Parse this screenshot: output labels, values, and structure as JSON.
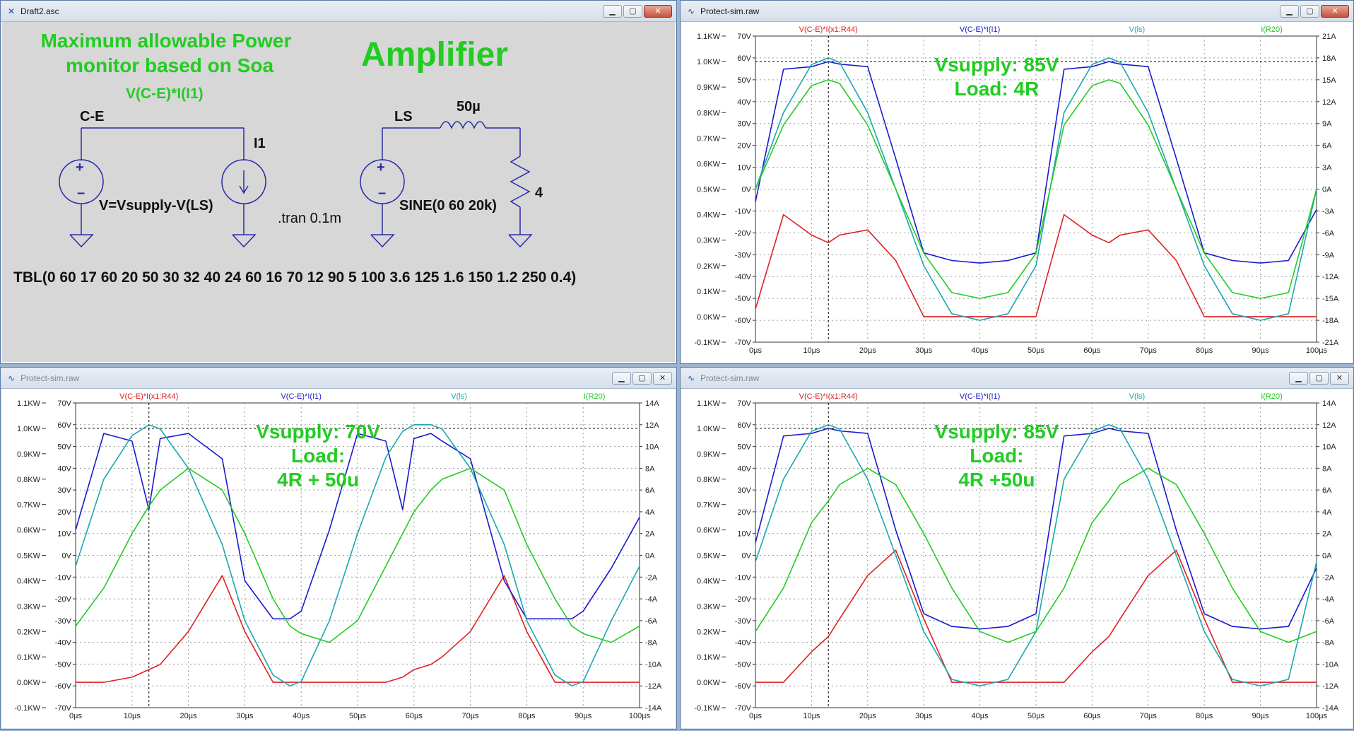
{
  "schematic_window": {
    "title": "Draft2.asc",
    "labels": {
      "heading_line1": "Maximum allowable Power",
      "heading_line2": "monitor based on Soa",
      "expr": "V(C-E)*I(I1)",
      "amplifier": "Amplifier",
      "ce": "C-E",
      "i1": "I1",
      "ls": "LS",
      "inductor": "50µ",
      "source_expr": "V=Vsupply-V(LS)",
      "tran": ".tran 0.1m",
      "sine": "SINE(0 60 20k)",
      "resistor": "4",
      "tbl": "TBL(0 60 17 60 20 50 30 32 40 24 60 16 70 12 90 5 100 3.6 125 1.6 150 1.2 250 0.4)"
    },
    "colors": {
      "text": "#22cc22",
      "wire": "#2a2aa8",
      "component": "#2a2aa8",
      "background": "#d7d7d7"
    }
  },
  "plot_windows": [
    {
      "title": "Protect-sim.raw",
      "active": true,
      "annotation": [
        "Vsupply: 85V",
        "Load: 4R"
      ],
      "legend": [
        {
          "label": "V(C-E)*I(x1:R44)",
          "color": "#e02020"
        },
        {
          "label": "V(C-E)*I(I1)",
          "color": "#1a1ad0"
        },
        {
          "label": "V(ls)",
          "color": "#1aa8b0"
        },
        {
          "label": "I(R20)",
          "color": "#22cc22"
        }
      ],
      "left_ticks_kw": [
        "1.1KW",
        "1.0KW",
        "0.9KW",
        "0.8KW",
        "0.7KW",
        "0.6KW",
        "0.5KW",
        "0.4KW",
        "0.3KW",
        "0.2KW",
        "0.1KW",
        "0.0KW",
        "-0.1KW"
      ],
      "volt_ticks": [
        "70V",
        "60V",
        "50V",
        "40V",
        "30V",
        "20V",
        "10V",
        "0V",
        "-10V",
        "-20V",
        "-30V",
        "-40V",
        "-50V",
        "-60V",
        "-70V"
      ],
      "right_ticks": [
        "21A",
        "18A",
        "15A",
        "12A",
        "9A",
        "6A",
        "3A",
        "0A",
        "-3A",
        "-6A",
        "-9A",
        "-12A",
        "-15A",
        "-18A",
        "-21A"
      ],
      "x_ticks": [
        "0µs",
        "10µs",
        "20µs",
        "30µs",
        "40µs",
        "50µs",
        "60µs",
        "70µs",
        "80µs",
        "90µs",
        "100µs"
      ]
    },
    {
      "title": "Protect-sim.raw",
      "active": false,
      "annotation": [
        "Vsupply: 70V",
        "Load:",
        "4R + 50u"
      ],
      "legend": [
        {
          "label": "V(C-E)*I(x1:R44)",
          "color": "#e02020"
        },
        {
          "label": "V(C-E)*I(I1)",
          "color": "#1a1ad0"
        },
        {
          "label": "V(ls)",
          "color": "#1aa8b0"
        },
        {
          "label": "I(R20)",
          "color": "#22cc22"
        }
      ],
      "left_ticks_kw": [
        "1.1KW",
        "1.0KW",
        "0.9KW",
        "0.8KW",
        "0.7KW",
        "0.6KW",
        "0.5KW",
        "0.4KW",
        "0.3KW",
        "0.2KW",
        "0.1KW",
        "0.0KW",
        "-0.1KW"
      ],
      "volt_ticks": [
        "70V",
        "60V",
        "50V",
        "40V",
        "30V",
        "20V",
        "10V",
        "0V",
        "-10V",
        "-20V",
        "-30V",
        "-40V",
        "-50V",
        "-60V",
        "-70V"
      ],
      "right_ticks": [
        "14A",
        "12A",
        "10A",
        "8A",
        "6A",
        "4A",
        "2A",
        "0A",
        "-2A",
        "-4A",
        "-6A",
        "-8A",
        "-10A",
        "-12A",
        "-14A"
      ],
      "x_ticks": [
        "0µs",
        "10µs",
        "20µs",
        "30µs",
        "40µs",
        "50µs",
        "60µs",
        "70µs",
        "80µs",
        "90µs",
        "100µs"
      ]
    },
    {
      "title": "Protect-sim.raw",
      "active": false,
      "annotation": [
        "Vsupply: 85V",
        "Load:",
        "4R +50u"
      ],
      "legend": [
        {
          "label": "V(C-E)*I(x1:R44)",
          "color": "#e02020"
        },
        {
          "label": "V(C-E)*I(I1)",
          "color": "#1a1ad0"
        },
        {
          "label": "V(ls)",
          "color": "#1aa8b0"
        },
        {
          "label": "I(R20)",
          "color": "#22cc22"
        }
      ],
      "left_ticks_kw": [
        "1.1KW",
        "1.0KW",
        "0.9KW",
        "0.8KW",
        "0.7KW",
        "0.6KW",
        "0.5KW",
        "0.4KW",
        "0.3KW",
        "0.2KW",
        "0.1KW",
        "0.0KW",
        "-0.1KW"
      ],
      "volt_ticks": [
        "70V",
        "60V",
        "50V",
        "40V",
        "30V",
        "20V",
        "10V",
        "0V",
        "-10V",
        "-20V",
        "-30V",
        "-40V",
        "-50V",
        "-60V",
        "-70V"
      ],
      "right_ticks": [
        "14A",
        "12A",
        "10A",
        "8A",
        "6A",
        "4A",
        "2A",
        "0A",
        "-2A",
        "-4A",
        "-6A",
        "-8A",
        "-10A",
        "-12A",
        "-14A"
      ],
      "x_ticks": [
        "0µs",
        "10µs",
        "20µs",
        "30µs",
        "40µs",
        "50µs",
        "60µs",
        "70µs",
        "80µs",
        "90µs",
        "100µs"
      ]
    }
  ],
  "chart_data": [
    {
      "type": "line",
      "x": [
        0,
        5,
        10,
        13,
        15,
        20,
        25,
        30,
        35,
        40,
        45,
        50,
        55,
        60,
        63,
        65,
        70,
        75,
        80,
        85,
        90,
        95,
        100
      ],
      "series": [
        {
          "name": "V(C-E)*I(x1:R44)",
          "values": [
            0.03,
            0.4,
            0.32,
            0.29,
            0.32,
            0.34,
            0.22,
            0.0,
            0.0,
            0.0,
            0.0,
            0.0,
            0.4,
            0.32,
            0.29,
            0.32,
            0.34,
            0.22,
            0.0,
            0.0,
            0.0,
            0.0,
            0.0
          ]
        },
        {
          "name": "V(C-E)*I(I1)",
          "values": [
            0.45,
            0.97,
            0.98,
            1.0,
            0.99,
            0.98,
            0.62,
            0.25,
            0.22,
            0.21,
            0.22,
            0.25,
            0.97,
            0.98,
            1.0,
            0.99,
            0.98,
            0.62,
            0.25,
            0.22,
            0.21,
            0.22,
            0.42
          ]
        },
        {
          "name": "V(ls)",
          "values": [
            0,
            35,
            57,
            60,
            58,
            35,
            0,
            -35,
            -57,
            -60,
            -57,
            -35,
            35,
            57,
            60,
            58,
            35,
            0,
            -35,
            -57,
            -60,
            -57,
            0
          ]
        },
        {
          "name": "I(R20)",
          "values": [
            0,
            8.8,
            14.2,
            15.0,
            14.5,
            8.8,
            0,
            -8.8,
            -14.2,
            -15,
            -14.2,
            -8.8,
            8.8,
            14.2,
            15.0,
            14.5,
            8.8,
            0,
            -8.8,
            -14.2,
            -15,
            -14.2,
            0
          ]
        }
      ],
      "xlabel": "",
      "xlim": [
        0,
        100
      ],
      "ylim_left_kw": [
        -0.1,
        1.1
      ],
      "ylim_volts": [
        -70,
        70
      ],
      "ylim_right_amps": [
        -21,
        21
      ]
    },
    {
      "type": "line",
      "x": [
        0,
        5,
        10,
        13,
        15,
        20,
        26,
        30,
        35,
        38,
        40,
        45,
        50,
        55,
        58,
        60,
        63,
        65,
        70,
        76,
        80,
        85,
        88,
        90,
        95,
        100
      ],
      "series": [
        {
          "name": "V(C-E)*I(x1:R44)",
          "values": [
            0.0,
            0.0,
            0.02,
            0.05,
            0.07,
            0.2,
            0.42,
            0.2,
            0.0,
            0.0,
            0.0,
            0.0,
            0.0,
            0.0,
            0.02,
            0.05,
            0.07,
            0.1,
            0.2,
            0.42,
            0.2,
            0.0,
            0.0,
            0.0,
            0.0,
            0.0
          ]
        },
        {
          "name": "V(C-E)*I(I1)",
          "values": [
            0.6,
            0.98,
            0.95,
            0.68,
            0.96,
            0.98,
            0.88,
            0.4,
            0.25,
            0.25,
            0.28,
            0.6,
            0.98,
            0.95,
            0.68,
            0.96,
            0.98,
            0.95,
            0.88,
            0.4,
            0.25,
            0.25,
            0.25,
            0.28,
            0.45,
            0.65
          ]
        },
        {
          "name": "V(ls)",
          "values": [
            -5,
            35,
            55,
            60,
            58,
            40,
            5,
            -30,
            -55,
            -60,
            -58,
            -30,
            10,
            45,
            57,
            60,
            60,
            58,
            40,
            5,
            -30,
            -55,
            -60,
            -58,
            -30,
            -5
          ]
        },
        {
          "name": "I(R20)",
          "values": [
            -6.5,
            -3,
            2,
            4.5,
            6,
            8,
            6,
            2,
            -4,
            -6.5,
            -7.2,
            -8,
            -6,
            -1,
            2,
            4,
            6,
            7,
            8,
            6,
            1,
            -4,
            -6.5,
            -7.2,
            -8,
            -6.5
          ]
        }
      ],
      "xlabel": "",
      "xlim": [
        0,
        100
      ],
      "ylim_left_kw": [
        -0.1,
        1.1
      ],
      "ylim_volts": [
        -70,
        70
      ],
      "ylim_right_amps": [
        -14,
        14
      ]
    },
    {
      "type": "line",
      "x": [
        0,
        5,
        10,
        13,
        15,
        20,
        25,
        30,
        35,
        40,
        45,
        50,
        55,
        60,
        63,
        65,
        70,
        75,
        80,
        85,
        90,
        95,
        100
      ],
      "series": [
        {
          "name": "V(C-E)*I(x1:R44)",
          "values": [
            0.0,
            0.0,
            0.12,
            0.18,
            0.25,
            0.42,
            0.52,
            0.25,
            0.0,
            0.0,
            0.0,
            0.0,
            0.0,
            0.12,
            0.18,
            0.25,
            0.42,
            0.52,
            0.25,
            0.0,
            0.0,
            0.0,
            0.0
          ]
        },
        {
          "name": "V(C-E)*I(I1)",
          "values": [
            0.55,
            0.97,
            0.98,
            1.0,
            0.99,
            0.98,
            0.6,
            0.27,
            0.22,
            0.21,
            0.22,
            0.27,
            0.97,
            0.98,
            1.0,
            0.99,
            0.98,
            0.6,
            0.27,
            0.22,
            0.21,
            0.22,
            0.45
          ]
        },
        {
          "name": "V(ls)",
          "values": [
            -3,
            35,
            57,
            60,
            58,
            35,
            0,
            -35,
            -57,
            -60,
            -57,
            -35,
            35,
            57,
            60,
            58,
            35,
            0,
            -35,
            -57,
            -60,
            -57,
            -3
          ]
        },
        {
          "name": "I(R20)",
          "values": [
            -7,
            -3,
            3,
            5,
            6.5,
            8,
            6.5,
            2,
            -3,
            -7,
            -8,
            -7,
            -3,
            3,
            5,
            6.5,
            8,
            6.5,
            2,
            -3,
            -7,
            -8,
            -7
          ]
        }
      ],
      "xlabel": "",
      "xlim": [
        0,
        100
      ],
      "ylim_left_kw": [
        -0.1,
        1.1
      ],
      "ylim_volts": [
        -70,
        70
      ],
      "ylim_right_amps": [
        -14,
        14
      ]
    }
  ]
}
